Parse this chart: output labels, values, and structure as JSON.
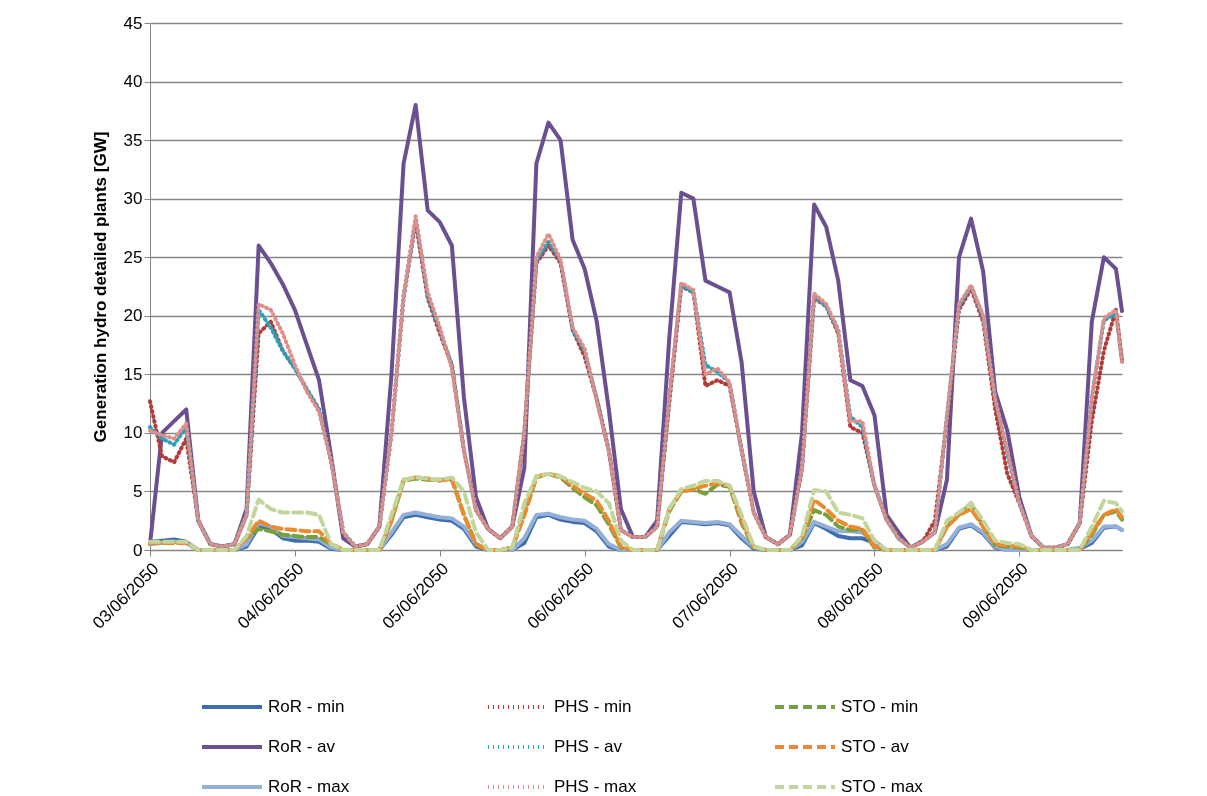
{
  "chart_data": {
    "type": "line",
    "ylabel": "Generation hydro detailed plants [GW]",
    "x": [
      "2050-06-03T00:00",
      "2050-06-03T02:00",
      "2050-06-03T04:00",
      "2050-06-03T06:00",
      "2050-06-03T08:00",
      "2050-06-03T10:00",
      "2050-06-03T12:00",
      "2050-06-03T14:00",
      "2050-06-03T16:00",
      "2050-06-03T18:00",
      "2050-06-03T20:00",
      "2050-06-03T22:00",
      "2050-06-04T00:00",
      "2050-06-04T02:00",
      "2050-06-04T04:00",
      "2050-06-04T06:00",
      "2050-06-04T08:00",
      "2050-06-04T10:00",
      "2050-06-04T12:00",
      "2050-06-04T14:00",
      "2050-06-04T16:00",
      "2050-06-04T18:00",
      "2050-06-04T20:00",
      "2050-06-04T22:00",
      "2050-06-05T00:00",
      "2050-06-05T02:00",
      "2050-06-05T04:00",
      "2050-06-05T06:00",
      "2050-06-05T08:00",
      "2050-06-05T10:00",
      "2050-06-05T12:00",
      "2050-06-05T14:00",
      "2050-06-05T16:00",
      "2050-06-05T18:00",
      "2050-06-05T20:00",
      "2050-06-05T22:00",
      "2050-06-06T00:00",
      "2050-06-06T02:00",
      "2050-06-06T04:00",
      "2050-06-06T06:00",
      "2050-06-06T08:00",
      "2050-06-06T10:00",
      "2050-06-06T12:00",
      "2050-06-06T14:00",
      "2050-06-06T16:00",
      "2050-06-06T18:00",
      "2050-06-06T20:00",
      "2050-06-06T22:00",
      "2050-06-07T00:00",
      "2050-06-07T02:00",
      "2050-06-07T04:00",
      "2050-06-07T06:00",
      "2050-06-07T08:00",
      "2050-06-07T10:00",
      "2050-06-07T12:00",
      "2050-06-07T14:00",
      "2050-06-07T16:00",
      "2050-06-07T18:00",
      "2050-06-07T20:00",
      "2050-06-07T22:00",
      "2050-06-08T00:00",
      "2050-06-08T02:00",
      "2050-06-08T04:00",
      "2050-06-08T06:00",
      "2050-06-08T08:00",
      "2050-06-08T10:00",
      "2050-06-08T12:00",
      "2050-06-08T14:00",
      "2050-06-08T16:00",
      "2050-06-08T18:00",
      "2050-06-08T20:00",
      "2050-06-08T22:00",
      "2050-06-09T00:00",
      "2050-06-09T02:00",
      "2050-06-09T04:00",
      "2050-06-09T06:00",
      "2050-06-09T08:00",
      "2050-06-09T10:00",
      "2050-06-09T12:00",
      "2050-06-09T14:00",
      "2050-06-09T16:00",
      "2050-06-09T17:00"
    ],
    "series": [
      {
        "name": "RoR - min",
        "color": "#3e6eac",
        "line_style": "solid",
        "values": [
          0.7,
          0.8,
          0.9,
          0.7,
          0,
          0,
          0,
          0,
          0.3,
          2,
          1.8,
          1,
          0.8,
          0.8,
          0.7,
          0.1,
          0,
          0,
          0,
          0,
          1.3,
          2.8,
          3,
          2.8,
          2.6,
          2.5,
          1.8,
          0.3,
          0,
          0,
          0,
          0.6,
          2.8,
          3,
          2.6,
          2.4,
          2.3,
          1.6,
          0.3,
          0,
          0,
          0,
          0,
          1.2,
          2.4,
          2.3,
          2.2,
          2.3,
          2.1,
          1,
          0.1,
          0,
          0,
          0,
          0.4,
          2.3,
          1.8,
          1.2,
          1,
          1,
          0.6,
          0,
          0,
          0,
          0,
          0,
          0.3,
          1.8,
          2.1,
          1.4,
          0.2,
          0,
          0,
          0,
          0,
          0,
          0,
          0.1,
          0.6,
          1.9,
          2,
          1.7
        ]
      },
      {
        "name": "RoR - av",
        "color": "#6a5090",
        "line_style": "solid",
        "values": [
          0.5,
          10,
          11,
          12,
          2.5,
          0.5,
          0.3,
          0.5,
          3.5,
          26,
          24.5,
          22.7,
          20.5,
          17.5,
          14.5,
          8,
          1,
          0.3,
          0.5,
          2,
          15,
          33,
          38,
          29,
          28,
          26,
          13,
          4.5,
          1.8,
          1,
          2,
          7,
          33,
          36.5,
          35,
          26.5,
          24,
          19.5,
          12,
          3.5,
          1.1,
          1.1,
          2.5,
          18,
          30.5,
          30,
          23,
          22.5,
          22,
          16,
          5,
          1.1,
          0.5,
          1.3,
          10,
          29.5,
          27.6,
          23,
          14.5,
          14,
          11.5,
          3,
          1.5,
          0.2,
          0.8,
          1.5,
          6,
          25,
          28.3,
          23.8,
          13.5,
          10.2,
          4.5,
          1.2,
          0.2,
          0.2,
          0.5,
          2.3,
          19.5,
          25,
          24,
          20.4
        ]
      },
      {
        "name": "RoR - max",
        "color": "#94b0d8",
        "line_style": "solid",
        "values": [
          0.5,
          0.6,
          0.7,
          0.6,
          0,
          0,
          0,
          0,
          0.5,
          2.3,
          2,
          1.2,
          1.1,
          1,
          0.9,
          0.2,
          0,
          0,
          0,
          0,
          1.5,
          3,
          3.2,
          3,
          2.8,
          2.7,
          2,
          0.5,
          0,
          0,
          0,
          1,
          3,
          3.1,
          2.8,
          2.6,
          2.5,
          1.8,
          0.5,
          0,
          0,
          0,
          0,
          1.5,
          2.5,
          2.4,
          2.3,
          2.4,
          2.2,
          1.2,
          0.2,
          0,
          0,
          0,
          0.7,
          2.4,
          2,
          1.6,
          1.6,
          1.5,
          0.8,
          0,
          0,
          0,
          0,
          0,
          0.5,
          1.9,
          2.2,
          1.5,
          0.3,
          0,
          0,
          0,
          0,
          0,
          0,
          0.2,
          0.8,
          2,
          2,
          1.7
        ]
      },
      {
        "name": "PHS - min",
        "color": "#b23b38",
        "line_style": "dotted",
        "values": [
          12.7,
          8,
          7.5,
          9.5,
          2.5,
          0.5,
          0.3,
          0.5,
          3,
          18.5,
          19.5,
          17,
          15.5,
          13.7,
          12,
          7.6,
          1.5,
          0.3,
          0.5,
          2,
          10,
          21.5,
          28,
          21.5,
          18.5,
          15.8,
          8.5,
          3.4,
          1.8,
          1,
          2,
          10,
          24.5,
          26,
          24.5,
          18.8,
          16.5,
          12.9,
          8.5,
          1.7,
          1.1,
          1.1,
          2,
          12.5,
          22.5,
          22,
          14,
          14.5,
          14,
          8.5,
          3.2,
          1.1,
          0.5,
          1.3,
          7,
          21.5,
          20.8,
          18.5,
          10.5,
          10,
          5.5,
          2.6,
          1,
          0.2,
          0.7,
          2.5,
          11,
          20.5,
          22.3,
          19.5,
          12,
          6.5,
          4,
          1.2,
          0.2,
          0.2,
          0.5,
          2.3,
          11,
          17,
          20.5,
          16.2
        ]
      },
      {
        "name": "PHS - av",
        "color": "#2b9fb8",
        "line_style": "dotted",
        "values": [
          10.5,
          9.5,
          9,
          10.5,
          2.5,
          0.5,
          0.3,
          0.5,
          3,
          20.5,
          19,
          17,
          15.5,
          13.7,
          12,
          7.6,
          1.5,
          0.3,
          0.5,
          2,
          10,
          21.7,
          28.3,
          21.7,
          18.8,
          15.8,
          8.5,
          3.4,
          1.8,
          1,
          2,
          10,
          24.7,
          26.3,
          24.7,
          18.8,
          17,
          12.9,
          8.5,
          1.7,
          1.1,
          1.1,
          2,
          12.9,
          22.6,
          22,
          15.8,
          15.2,
          14.3,
          8.5,
          3.2,
          1.1,
          0.5,
          1.3,
          7,
          21.7,
          20.8,
          18.8,
          11.4,
          10.5,
          5.5,
          2.6,
          1,
          0.2,
          0.7,
          1.5,
          11.4,
          20.8,
          22.5,
          19.9,
          12.9,
          8.2,
          4,
          1.2,
          0.2,
          0.2,
          0.5,
          2.3,
          13,
          19.6,
          20.2,
          16.2
        ]
      },
      {
        "name": "PHS - max",
        "color": "#de8f8c",
        "line_style": "dotted",
        "values": [
          10.2,
          9.8,
          9.5,
          10.8,
          2.5,
          0.5,
          0.3,
          0.5,
          3,
          21,
          20.5,
          18.5,
          15.8,
          13.5,
          11.8,
          7.6,
          1.5,
          0.3,
          0.5,
          2,
          10,
          21.7,
          28.5,
          22,
          19,
          15.5,
          8.5,
          3.4,
          1.8,
          1,
          2,
          10,
          25,
          27,
          24.8,
          19,
          17.2,
          12.7,
          8.5,
          1.7,
          1.1,
          1.1,
          2,
          12.9,
          22.8,
          22.2,
          15,
          15.5,
          14.3,
          8.5,
          3.2,
          1.1,
          0.5,
          1.3,
          7,
          21.9,
          21,
          18.8,
          11,
          11,
          5.5,
          2.6,
          1,
          0.2,
          0.7,
          1.5,
          11.4,
          21,
          22.6,
          20,
          12.9,
          8.5,
          4,
          1.2,
          0.2,
          0.2,
          0.5,
          2.3,
          13,
          19.8,
          20.5,
          16
        ]
      },
      {
        "name": "STO - min",
        "color": "#76a13a",
        "line_style": "dashed",
        "values": [
          0.6,
          0.6,
          0.6,
          0.6,
          0,
          0,
          0,
          0,
          1,
          1.8,
          1.6,
          1.3,
          1.2,
          1.1,
          1.1,
          0.5,
          0,
          0,
          0,
          0,
          2.5,
          5.9,
          6.1,
          6,
          6,
          6,
          3,
          0.5,
          0,
          0,
          0.2,
          3,
          6.2,
          6.5,
          6.2,
          5.3,
          4.5,
          3.8,
          2.2,
          0.2,
          0,
          0,
          0,
          3.3,
          5,
          5.2,
          4.8,
          5.6,
          5.4,
          2.3,
          0.2,
          0,
          0,
          0,
          1,
          3.4,
          3,
          2,
          1.7,
          1.7,
          0.2,
          0,
          0,
          0,
          0,
          0,
          2,
          3,
          4,
          2,
          0.4,
          0.3,
          0.2,
          0,
          0,
          0,
          0,
          0,
          1.3,
          3,
          3.3,
          2.6
        ]
      },
      {
        "name": "STO - av",
        "color": "#ee8a2e",
        "line_style": "dashed",
        "values": [
          0.6,
          0.6,
          0.6,
          0.6,
          0,
          0,
          0,
          0,
          1,
          2.5,
          2,
          1.8,
          1.7,
          1.6,
          1.6,
          0.5,
          0,
          0,
          0,
          0,
          2.5,
          6,
          6.2,
          6.1,
          5.9,
          6.1,
          3,
          0.5,
          0,
          0,
          0.2,
          3,
          6.3,
          6.5,
          6.3,
          5.5,
          4.8,
          4.2,
          2.5,
          0.3,
          0,
          0,
          0,
          3.5,
          5,
          5.2,
          5.5,
          5.7,
          5.5,
          2.5,
          0.3,
          0,
          0,
          0,
          1,
          4.3,
          3.5,
          2.5,
          2,
          1.8,
          0.3,
          0,
          0,
          0,
          0,
          0,
          2,
          3,
          3.5,
          2,
          0.5,
          0.4,
          0.3,
          0,
          0,
          0,
          0,
          0,
          1.5,
          3,
          3.5,
          2.8
        ]
      },
      {
        "name": "STO - max",
        "color": "#c2d69b",
        "line_style": "dashed",
        "values": [
          0.7,
          0.7,
          0.7,
          0.7,
          0,
          0,
          0,
          0,
          1.2,
          4.3,
          3.5,
          3.2,
          3.2,
          3.2,
          3,
          0.5,
          0,
          0,
          0,
          0,
          3,
          6,
          6.2,
          6.1,
          6,
          6.2,
          5,
          1.5,
          0,
          0,
          0.2,
          4,
          6.3,
          6.5,
          6.3,
          5.8,
          5.3,
          5,
          4,
          0.8,
          0,
          0,
          0,
          3.5,
          5.2,
          5.5,
          5.9,
          5.9,
          5.5,
          3,
          0.3,
          0,
          0,
          0,
          1.2,
          5.1,
          5,
          3.2,
          3,
          2.7,
          0.8,
          0,
          0,
          0,
          0,
          0,
          2.5,
          3.2,
          4,
          2.5,
          0.8,
          0.6,
          0.5,
          0,
          0,
          0,
          0,
          0,
          2,
          4.2,
          4,
          3.3
        ]
      }
    ],
    "xlim": [
      "2050-06-03T00:00",
      "2050-06-09T17:00"
    ],
    "xticks": [
      {
        "value": "2050-06-03",
        "label": "03/06/2050"
      },
      {
        "value": "2050-06-04",
        "label": "04/06/2050"
      },
      {
        "value": "2050-06-05",
        "label": "05/06/2050"
      },
      {
        "value": "2050-06-06",
        "label": "06/06/2050"
      },
      {
        "value": "2050-06-07",
        "label": "07/06/2050"
      },
      {
        "value": "2050-06-08",
        "label": "08/06/2050"
      },
      {
        "value": "2050-06-09",
        "label": "09/06/2050"
      }
    ],
    "ylim": [
      0,
      45
    ],
    "yticks": [
      0,
      5,
      10,
      15,
      20,
      25,
      30,
      35,
      40,
      45
    ],
    "grid": "y",
    "legend": "bottom"
  }
}
